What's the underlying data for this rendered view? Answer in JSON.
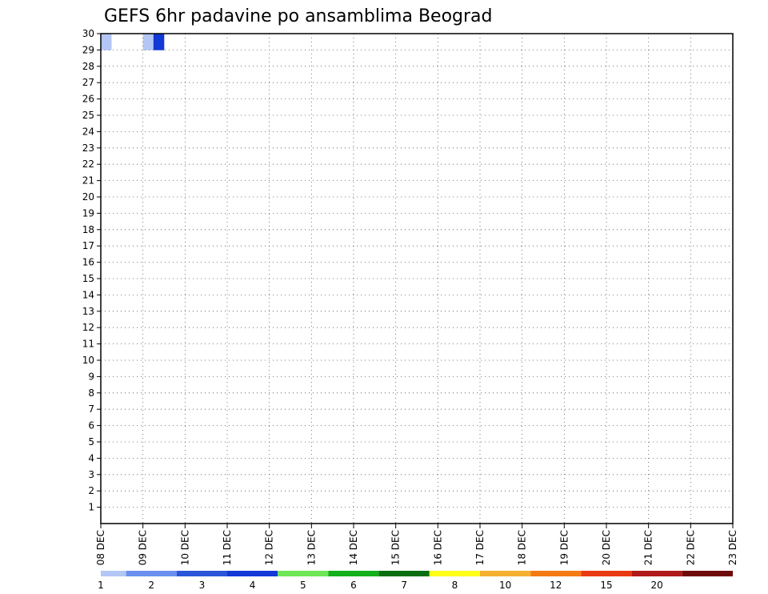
{
  "chart_data": {
    "type": "heatmap",
    "title": "GEFS 6hr padavine po ansamblima Beograd",
    "y_ticks": [
      "1",
      "2",
      "3",
      "4",
      "5",
      "6",
      "7",
      "8",
      "9",
      "10",
      "11",
      "12",
      "13",
      "14",
      "15",
      "16",
      "17",
      "18",
      "19",
      "20",
      "21",
      "22",
      "23",
      "24",
      "25",
      "26",
      "27",
      "28",
      "29",
      "30"
    ],
    "x_ticks": [
      "08 DEC",
      "09 DEC",
      "10 DEC",
      "11 DEC",
      "12 DEC",
      "13 DEC",
      "14 DEC",
      "15 DEC",
      "16 DEC",
      "17 DEC",
      "18 DEC",
      "19 DEC",
      "20 DEC",
      "21 DEC",
      "22 DEC",
      "23 DEC"
    ],
    "ylim": [
      0,
      30
    ],
    "grid": true,
    "colorbar": {
      "levels": [
        "1",
        "2",
        "3",
        "4",
        "5",
        "6",
        "7",
        "8",
        "10",
        "12",
        "15",
        "20"
      ],
      "colors": [
        "#b3c6f5",
        "#6b8ff0",
        "#2b56d9",
        "#1238d6",
        "#6ee655",
        "#12b01a",
        "#0a6e10",
        "#ffff1a",
        "#f5b030",
        "#f57a12",
        "#e83a12",
        "#b01a1a",
        "#6e0a0a"
      ]
    },
    "cells": [
      {
        "m": 30,
        "t": 0.0
      },
      {
        "m": 30,
        "t": 1.0
      },
      {
        "m": 30,
        "t": 1.25,
        "v": 3.2
      }
    ]
  }
}
